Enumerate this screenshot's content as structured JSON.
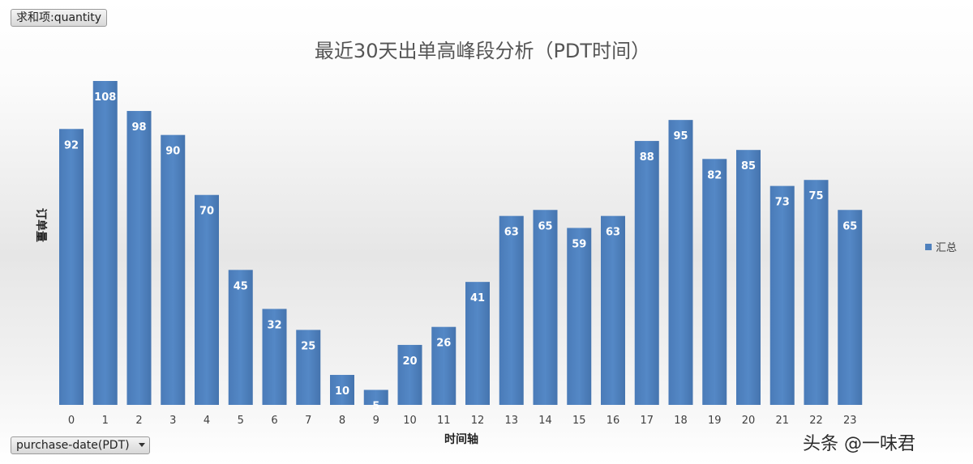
{
  "pivot": {
    "value_field": "求和项:quantity",
    "axis_field": "purchase-date(PDT)"
  },
  "watermark": "头条 @一味君",
  "colors": {
    "bar": "#4f81bd",
    "bar_dark": "#3a6aa5",
    "legend_marker": "#4f81bd"
  },
  "chart_data": {
    "type": "bar",
    "title": "最近30天出单高峰段分析（PDT时间）",
    "xlabel": "时间轴",
    "ylabel": "订单量",
    "categories": [
      "0",
      "1",
      "2",
      "3",
      "4",
      "5",
      "6",
      "7",
      "8",
      "9",
      "10",
      "11",
      "12",
      "13",
      "14",
      "15",
      "16",
      "17",
      "18",
      "19",
      "20",
      "21",
      "22",
      "23"
    ],
    "series": [
      {
        "name": "汇总",
        "values": [
          92,
          108,
          98,
          90,
          70,
          45,
          32,
          25,
          10,
          5,
          20,
          26,
          41,
          63,
          65,
          59,
          63,
          88,
          95,
          82,
          85,
          73,
          75,
          65
        ]
      }
    ],
    "ylim": [
      0,
      108
    ],
    "grid": false,
    "legend": "right",
    "data_labels": true
  }
}
